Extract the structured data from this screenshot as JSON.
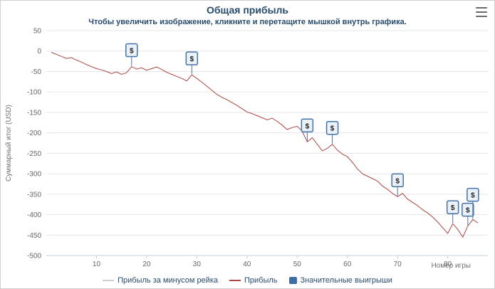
{
  "title": "Общая прибыль",
  "subtitle": "Чтобы увеличить изображение, кликните и перетащите мышкой внутрь графика.",
  "colors": {
    "title": "#274b6d",
    "profit_line": "#AA4643",
    "rake_line": "#CCCCCC",
    "flag_border": "#4572A7",
    "flag_fill": "#EAF1F8",
    "grid": "#E6E6E6",
    "axis_line": "#C0D0E0",
    "tick_text": "#666666",
    "axis_title_text": "#707070"
  },
  "legend": [
    {
      "label": "Прибыль за минусом рейка",
      "color": "#CCCCCC",
      "type": "line"
    },
    {
      "label": "Прибыль",
      "color": "#AA4643",
      "type": "line"
    },
    {
      "label": "Значительные выигрыши",
      "color": "#3E6DA5",
      "type": "flag"
    }
  ],
  "chart_data": {
    "type": "line",
    "title": "Общая прибыль",
    "subtitle": "Чтобы увеличить изображение, кликните и перетащите мышкой внутрь графика.",
    "xlabel": "Номер игры",
    "ylabel": "Суммарный итог (USD)",
    "xlim": [
      0,
      88
    ],
    "ylim": [
      -500,
      50
    ],
    "xticks": [
      10,
      20,
      30,
      40,
      50,
      60,
      70,
      80
    ],
    "yticks": [
      50,
      0,
      -50,
      -100,
      -150,
      -200,
      -250,
      -300,
      -350,
      -400,
      -450,
      -500
    ],
    "grid": true,
    "legend_position": "bottom",
    "series": [
      {
        "name": "Прибыль",
        "color": "#AA4643",
        "points": [
          [
            1,
            -3
          ],
          [
            2,
            -8
          ],
          [
            3,
            -13
          ],
          [
            4,
            -18
          ],
          [
            5,
            -16
          ],
          [
            6,
            -22
          ],
          [
            7,
            -27
          ],
          [
            8,
            -33
          ],
          [
            9,
            -38
          ],
          [
            10,
            -43
          ],
          [
            11,
            -46
          ],
          [
            12,
            -50
          ],
          [
            13,
            -55
          ],
          [
            14,
            -51
          ],
          [
            15,
            -57
          ],
          [
            16,
            -53
          ],
          [
            17,
            -38
          ],
          [
            18,
            -44
          ],
          [
            19,
            -41
          ],
          [
            20,
            -47
          ],
          [
            21,
            -43
          ],
          [
            22,
            -39
          ],
          [
            23,
            -45
          ],
          [
            24,
            -52
          ],
          [
            25,
            -57
          ],
          [
            26,
            -62
          ],
          [
            27,
            -67
          ],
          [
            28,
            -73
          ],
          [
            29,
            -58
          ],
          [
            30,
            -67
          ],
          [
            31,
            -76
          ],
          [
            32,
            -86
          ],
          [
            33,
            -96
          ],
          [
            34,
            -106
          ],
          [
            35,
            -113
          ],
          [
            36,
            -119
          ],
          [
            37,
            -126
          ],
          [
            38,
            -133
          ],
          [
            39,
            -141
          ],
          [
            40,
            -149
          ],
          [
            41,
            -153
          ],
          [
            42,
            -158
          ],
          [
            43,
            -163
          ],
          [
            44,
            -168
          ],
          [
            45,
            -164
          ],
          [
            46,
            -172
          ],
          [
            47,
            -181
          ],
          [
            48,
            -192
          ],
          [
            49,
            -187
          ],
          [
            50,
            -184
          ],
          [
            51,
            -196
          ],
          [
            52,
            -222
          ],
          [
            53,
            -212
          ],
          [
            54,
            -228
          ],
          [
            55,
            -244
          ],
          [
            56,
            -238
          ],
          [
            57,
            -228
          ],
          [
            58,
            -242
          ],
          [
            59,
            -252
          ],
          [
            60,
            -258
          ],
          [
            61,
            -272
          ],
          [
            62,
            -288
          ],
          [
            63,
            -300
          ],
          [
            64,
            -306
          ],
          [
            65,
            -312
          ],
          [
            66,
            -318
          ],
          [
            67,
            -330
          ],
          [
            68,
            -338
          ],
          [
            69,
            -348
          ],
          [
            70,
            -356
          ],
          [
            71,
            -348
          ],
          [
            72,
            -362
          ],
          [
            73,
            -370
          ],
          [
            74,
            -378
          ],
          [
            75,
            -388
          ],
          [
            76,
            -396
          ],
          [
            77,
            -406
          ],
          [
            78,
            -418
          ],
          [
            79,
            -432
          ],
          [
            80,
            -446
          ],
          [
            81,
            -422
          ],
          [
            82,
            -436
          ],
          [
            83,
            -455
          ],
          [
            84,
            -428
          ],
          [
            85,
            -412
          ],
          [
            86,
            -420
          ]
        ]
      }
    ],
    "flags": {
      "name": "Значительные выигрыши",
      "symbol": "$",
      "color": "#4572A7",
      "x": [
        17,
        29,
        52,
        57,
        70,
        81,
        84,
        85
      ]
    }
  }
}
